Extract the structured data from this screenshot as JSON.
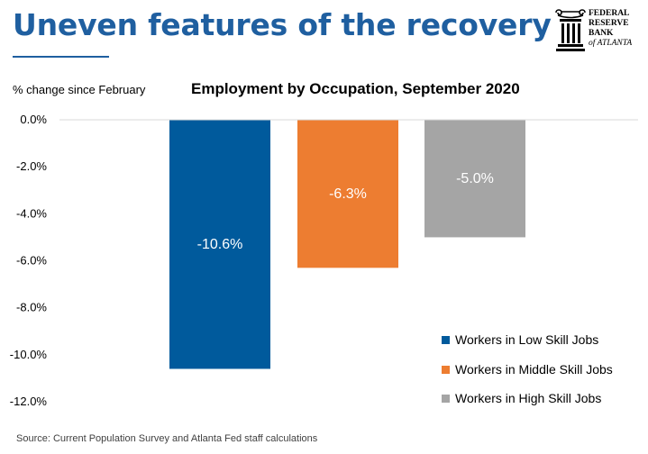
{
  "slide": {
    "title": "Uneven features of the recovery",
    "source": "Source:  Current Population Survey and Atlanta Fed staff calculations"
  },
  "logo": {
    "name": "seal-logo-icon",
    "lines": [
      "FEDERAL",
      "RESERVE",
      "BANK",
      "of ATLANTA"
    ]
  },
  "chart_data": {
    "type": "bar",
    "title": "Employment by Occupation, September 2020",
    "ylabel": "% change since February",
    "xlabel": "",
    "categories": [
      "Workers in Low Skill Jobs",
      "Workers in Middle Skill Jobs",
      "Workers in High Skill Jobs"
    ],
    "values": [
      -10.6,
      -6.3,
      -5.0
    ],
    "data_labels": [
      "-10.6%",
      "-6.3%",
      "-5.0%"
    ],
    "colors": [
      "#005a9c",
      "#ed7d31",
      "#a5a5a5"
    ],
    "ylim": [
      -12,
      0
    ],
    "yticks": [
      0,
      -2,
      -4,
      -6,
      -8,
      -10,
      -12
    ],
    "ytick_labels": [
      "0.0%",
      "-2.0%",
      "-4.0%",
      "-6.0%",
      "-8.0%",
      "-10.0%",
      "-12.0%"
    ],
    "legend": {
      "placement": "bottom-right",
      "entries": [
        "Workers in Low Skill Jobs",
        "Workers in Middle Skill Jobs",
        "Workers in High Skill Jobs"
      ]
    },
    "grid": false
  }
}
